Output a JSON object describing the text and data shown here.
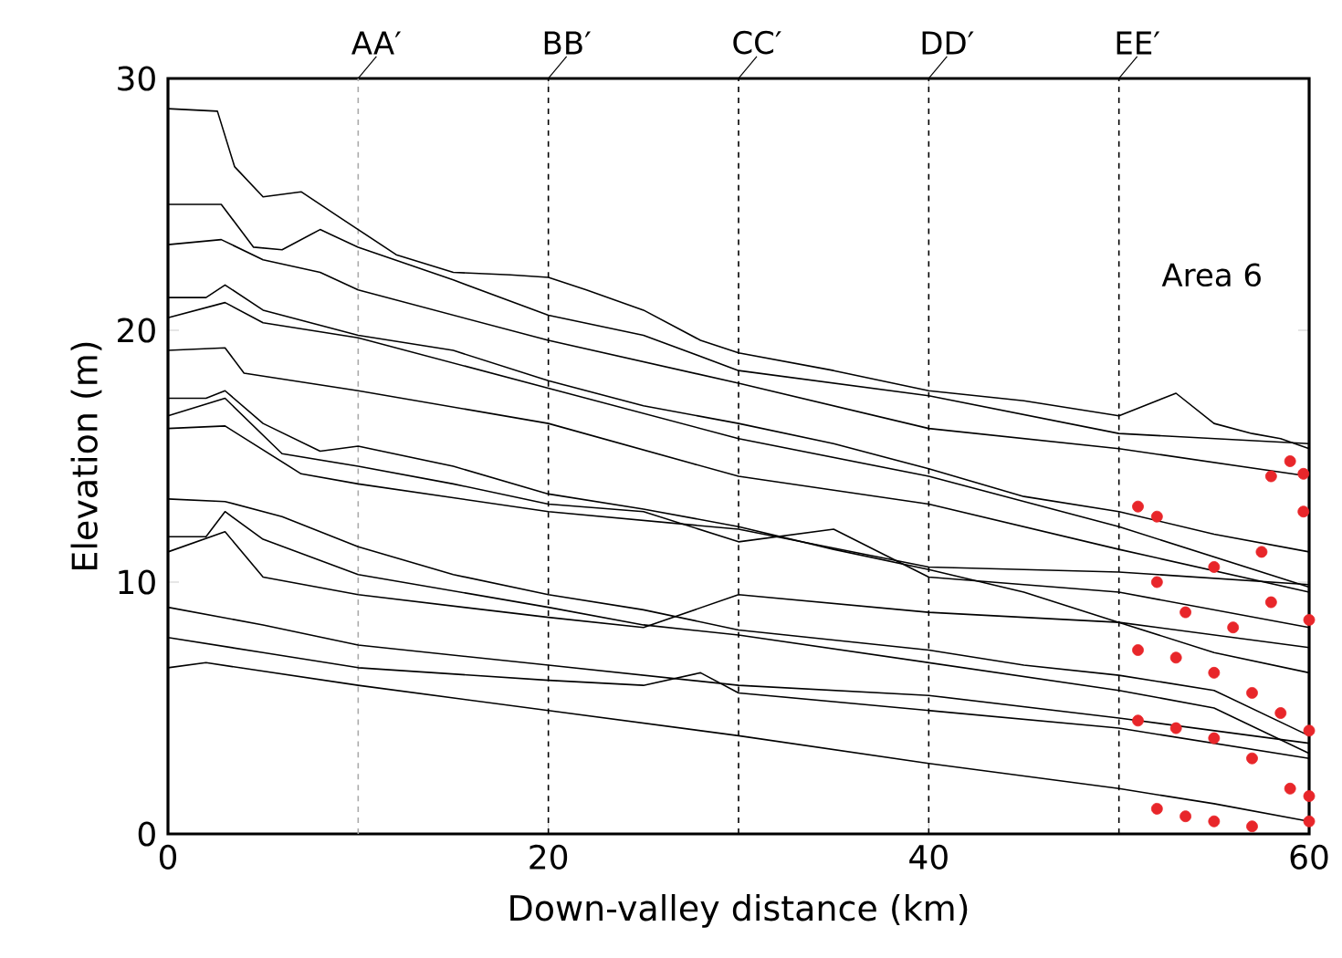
{
  "chart_data": {
    "type": "line",
    "xlabel": "Down-valley distance (km)",
    "ylabel": "Elevation (m)",
    "xlim": [
      0,
      60
    ],
    "ylim": [
      0,
      30
    ],
    "xticks": [
      0,
      20,
      40,
      60
    ],
    "yticks": [
      0,
      10,
      20,
      30
    ],
    "grid": false,
    "line_style": "solid",
    "annotations": [
      "Area 6"
    ],
    "ref_lines": [
      {
        "axis": "x",
        "value": 10,
        "label": "AA′",
        "color": "#aaaaaa",
        "line_style": "dashed"
      },
      {
        "axis": "x",
        "value": 20,
        "label": "BB′",
        "color": "#000000",
        "line_style": "dashed"
      },
      {
        "axis": "x",
        "value": 30,
        "label": "CC′",
        "color": "#000000",
        "line_style": "dashed"
      },
      {
        "axis": "x",
        "value": 40,
        "label": "DD′",
        "color": "#000000",
        "line_style": "dashed"
      },
      {
        "axis": "x",
        "value": 50,
        "label": "EE′",
        "color": "#000000",
        "line_style": "dashed"
      }
    ],
    "series": [
      {
        "color": "#000000",
        "x": [
          0,
          2.6,
          3.5,
          5,
          7,
          9,
          10,
          12,
          15,
          18,
          20,
          22,
          25,
          28,
          30,
          35,
          40,
          45,
          50,
          53,
          55,
          57,
          58.5,
          60
        ],
        "values": [
          28.8,
          28.7,
          26.5,
          25.3,
          25.5,
          24.5,
          24,
          23,
          22.3,
          22.2,
          22.1,
          21.6,
          20.8,
          19.6,
          19.1,
          18.4,
          17.6,
          17.2,
          16.6,
          17.5,
          16.3,
          15.9,
          15.7,
          15.3
        ]
      },
      {
        "color": "#000000",
        "x": [
          0,
          2.8,
          4.5,
          6,
          8,
          10,
          15,
          20,
          25,
          30,
          40,
          50,
          60
        ],
        "values": [
          25,
          25,
          23.3,
          23.2,
          24,
          23.3,
          22,
          20.6,
          19.8,
          18.4,
          17.4,
          15.9,
          15.5
        ]
      },
      {
        "color": "#000000",
        "x": [
          0,
          2.8,
          5,
          8,
          10,
          15,
          20,
          30,
          40,
          50,
          60
        ],
        "values": [
          23.4,
          23.6,
          22.8,
          22.3,
          21.6,
          20.6,
          19.6,
          17.9,
          16.1,
          15.3,
          14.2
        ]
      },
      {
        "color": "#000000",
        "x": [
          0,
          2,
          3,
          5,
          10,
          15,
          20,
          25,
          30,
          35,
          40,
          45,
          50,
          55,
          60
        ],
        "values": [
          21.3,
          21.3,
          21.8,
          20.8,
          19.8,
          19.2,
          18,
          17,
          16.3,
          15.5,
          14.5,
          13.4,
          12.8,
          11.9,
          11.2
        ]
      },
      {
        "color": "#000000",
        "x": [
          0,
          3,
          5,
          10,
          20,
          30,
          40,
          50,
          60
        ],
        "values": [
          20.5,
          21.1,
          20.3,
          19.7,
          17.7,
          15.7,
          14.2,
          12.2,
          9.8
        ]
      },
      {
        "color": "#000000",
        "x": [
          0,
          3,
          4,
          10,
          20,
          30,
          40,
          50,
          60
        ],
        "values": [
          19.2,
          19.3,
          18.3,
          17.6,
          16.3,
          14.2,
          13.1,
          11.3,
          9.6
        ]
      },
      {
        "color": "#000000",
        "x": [
          0,
          2,
          3,
          5,
          8,
          10,
          15,
          20,
          25,
          30,
          35,
          40,
          45,
          50,
          55,
          60
        ],
        "values": [
          17.3,
          17.3,
          17.6,
          16.3,
          15.2,
          15.4,
          14.6,
          13.5,
          12.9,
          12.2,
          11.3,
          10.5,
          9.6,
          8.4,
          7.2,
          6.4
        ]
      },
      {
        "color": "#000000",
        "x": [
          0,
          3,
          6,
          10,
          15,
          20,
          25,
          30,
          35,
          40,
          50,
          60
        ],
        "values": [
          16.6,
          17.3,
          15.1,
          14.6,
          13.9,
          13.1,
          12.8,
          11.6,
          12.1,
          10.2,
          9.6,
          8.2
        ]
      },
      {
        "color": "#000000",
        "x": [
          0,
          3,
          7,
          10,
          20,
          30,
          40,
          50,
          60
        ],
        "values": [
          16.1,
          16.2,
          14.3,
          13.9,
          12.8,
          12.1,
          10.6,
          10.4,
          9.9
        ]
      },
      {
        "color": "#000000",
        "x": [
          0,
          3,
          6,
          10,
          15,
          20,
          25,
          30,
          40,
          45,
          50,
          55,
          60
        ],
        "values": [
          13.3,
          13.2,
          12.6,
          11.4,
          10.3,
          9.5,
          8.9,
          8.1,
          7.3,
          6.7,
          6.3,
          5.7,
          3.9
        ]
      },
      {
        "color": "#000000",
        "x": [
          0,
          2,
          3,
          5,
          10,
          20,
          25,
          30,
          40,
          50,
          55,
          60
        ],
        "values": [
          11.8,
          11.8,
          12.8,
          11.7,
          10.3,
          9,
          8.3,
          7.9,
          6.8,
          5.7,
          5,
          3.2
        ]
      },
      {
        "color": "#000000",
        "x": [
          0,
          3,
          5,
          10,
          20,
          25,
          30,
          40,
          50,
          60
        ],
        "values": [
          11.2,
          12,
          10.2,
          9.5,
          8.6,
          8.2,
          9.5,
          8.8,
          8.4,
          7.4
        ]
      },
      {
        "color": "#000000",
        "x": [
          0,
          5,
          10,
          20,
          30,
          40,
          50,
          60
        ],
        "values": [
          9,
          8.3,
          7.5,
          6.7,
          5.9,
          5.5,
          4.6,
          3.6
        ]
      },
      {
        "color": "#000000",
        "x": [
          0,
          5,
          10,
          20,
          25,
          28,
          30,
          40,
          50,
          60
        ],
        "values": [
          7.8,
          7.2,
          6.6,
          6.1,
          5.9,
          6.4,
          5.6,
          4.9,
          4.2,
          3
        ]
      },
      {
        "color": "#000000",
        "x": [
          0,
          2,
          10,
          20,
          30,
          40,
          50,
          55,
          60
        ],
        "values": [
          6.6,
          6.8,
          5.9,
          4.9,
          3.9,
          2.8,
          1.8,
          1.2,
          0.5
        ]
      },
      {
        "type": "scatter",
        "marker": "circle",
        "color": "#e8262a",
        "x": [
          51,
          52,
          55,
          57.5,
          58,
          59,
          59.7,
          59.7,
          52,
          53.5,
          56,
          58,
          60,
          51,
          53,
          55,
          57,
          58.5,
          60,
          51,
          53,
          55,
          57,
          59,
          60,
          52,
          53.5,
          55,
          57,
          60
        ],
        "values": [
          13,
          12.6,
          10.6,
          11.2,
          14.2,
          14.8,
          14.3,
          12.8,
          10,
          8.8,
          8.2,
          9.2,
          8.5,
          7.3,
          7,
          6.4,
          5.6,
          4.8,
          4.1,
          4.5,
          4.2,
          3.8,
          3,
          1.8,
          1.5,
          1,
          0.7,
          0.5,
          0.3,
          0.5
        ]
      }
    ]
  }
}
